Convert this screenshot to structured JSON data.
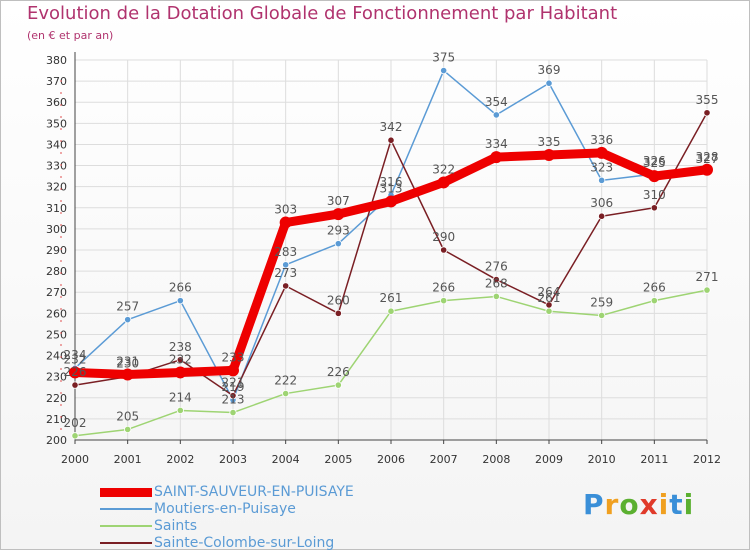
{
  "title": "Evolution de la Dotation Globale de Fonctionnement par Habitant",
  "subtitle": "(en € et par an)",
  "logo_text": "Proxiti",
  "colors": {
    "title": "#b0336e",
    "grid": "#dddddd",
    "axis": "#444444",
    "label": "#555555"
  },
  "chart_data": {
    "type": "line",
    "title": "Evolution de la Dotation Globale de Fonctionnement par Habitant",
    "subtitle": "(en € et par an)",
    "xlabel": "",
    "ylabel": "",
    "x": [
      "2000",
      "2001",
      "2002",
      "2003",
      "2004",
      "2005",
      "2006",
      "2007",
      "2008",
      "2009",
      "2010",
      "2011",
      "2012"
    ],
    "ylim": [
      200,
      380
    ],
    "yticks": [
      200,
      210,
      220,
      230,
      240,
      250,
      260,
      270,
      280,
      290,
      300,
      310,
      320,
      330,
      340,
      350,
      360,
      370,
      380
    ],
    "grid": true,
    "legend_position": "bottom-left",
    "series": [
      {
        "name": "SAINT-SAUVEUR-EN-PUISAYE",
        "color": "#ee0000",
        "emphasis": true,
        "values": [
          232,
          231,
          232,
          233,
          303,
          307,
          313,
          322,
          334,
          335,
          336,
          325,
          328
        ]
      },
      {
        "name": "Moutiers-en-Puisaye",
        "color": "#5b9bd5",
        "values": [
          234,
          257,
          266,
          219,
          283,
          293,
          316,
          375,
          354,
          369,
          323,
          326,
          327
        ]
      },
      {
        "name": "Saints",
        "color": "#9ed473",
        "values": [
          202,
          205,
          214,
          213,
          222,
          226,
          261,
          266,
          268,
          261,
          259,
          266,
          271
        ]
      },
      {
        "name": "Sainte-Colombe-sur-Loing",
        "color": "#7a1f24",
        "values": [
          226,
          230,
          238,
          221,
          273,
          260,
          342,
          290,
          276,
          264,
          306,
          310,
          355
        ]
      }
    ]
  }
}
